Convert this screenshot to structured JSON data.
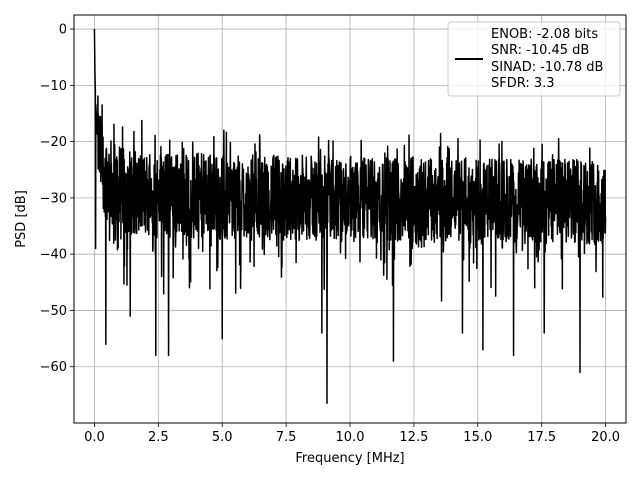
{
  "chart_data": {
    "type": "line",
    "title": "",
    "xlabel": "Frequency [MHz]",
    "ylabel": "PSD [dB]",
    "xlim": [
      -0.8,
      20.8
    ],
    "ylim": [
      -70,
      2.5
    ],
    "xticks": [
      0.0,
      2.5,
      5.0,
      7.5,
      10.0,
      12.5,
      15.0,
      17.5,
      20.0
    ],
    "xtick_labels": [
      "0.0",
      "2.5",
      "5.0",
      "7.5",
      "10.0",
      "12.5",
      "15.0",
      "17.5",
      "20.0"
    ],
    "yticks": [
      0,
      -10,
      -20,
      -30,
      -40,
      -50,
      -60
    ],
    "ytick_labels": [
      "0",
      "−10",
      "−20",
      "−30",
      "−40",
      "−50",
      "−60"
    ],
    "grid": true,
    "legend_position": "top-right",
    "legend_lines": [
      "ENOB: -2.08 bits",
      "SNR: -10.45 dB",
      "SINAD: -10.78 dB",
      "SFDR: 3.3"
    ],
    "series": [
      {
        "color": "#000000",
        "x": [
          0.0,
          0.02,
          0.04,
          0.07,
          0.1,
          0.15,
          0.2,
          0.3,
          0.45,
          0.6,
          0.8,
          1.0,
          1.5,
          2.0,
          3.0,
          5.0,
          7.5,
          10.0,
          12.5,
          15.0,
          17.5,
          20.0
        ],
        "y": [
          0.0,
          -8.0,
          -12.0,
          -15.0,
          -18.0,
          -20.0,
          -22.0,
          -24.0,
          -26.0,
          -27.0,
          -28.0,
          -28.5,
          -29.0,
          -29.3,
          -29.5,
          -29.8,
          -30.0,
          -30.2,
          -30.3,
          -30.5,
          -30.6,
          -30.7
        ],
        "noise_band_db": [
          -22,
          -38
        ],
        "spikes": [
          {
            "x": 0.05,
            "y": -39
          },
          {
            "x": 0.45,
            "y": -56
          },
          {
            "x": 1.4,
            "y": -51
          },
          {
            "x": 2.4,
            "y": -58
          },
          {
            "x": 2.9,
            "y": -58
          },
          {
            "x": 5.0,
            "y": -55
          },
          {
            "x": 8.9,
            "y": -54
          },
          {
            "x": 9.1,
            "y": -66.5
          },
          {
            "x": 11.7,
            "y": -59
          },
          {
            "x": 14.4,
            "y": -54
          },
          {
            "x": 15.2,
            "y": -57
          },
          {
            "x": 16.4,
            "y": -58
          },
          {
            "x": 17.6,
            "y": -54
          },
          {
            "x": 19.0,
            "y": -61
          }
        ]
      }
    ]
  }
}
